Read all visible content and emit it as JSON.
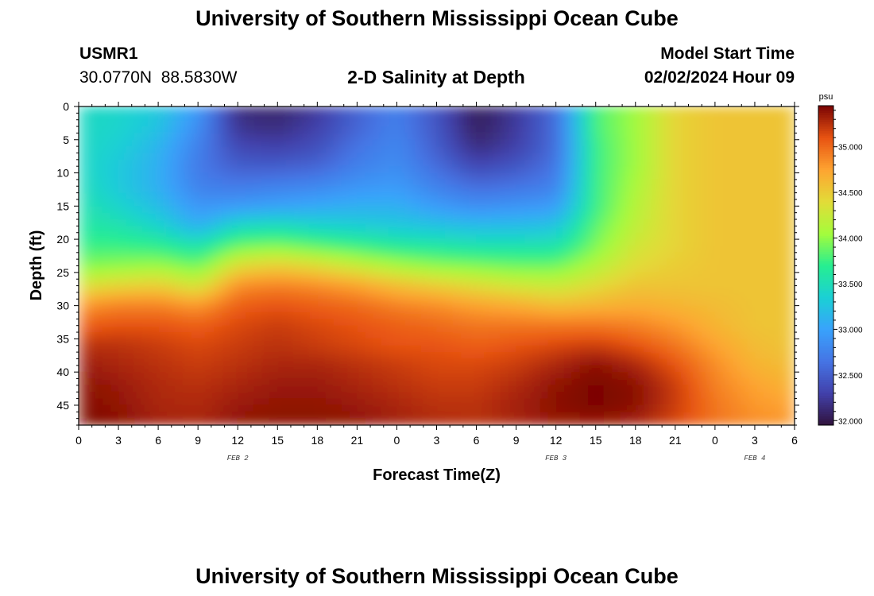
{
  "header": {
    "title": "University of Southern Mississippi Ocean Cube",
    "station_id": "USMR1",
    "coordinates": "30.0770N  88.5830W",
    "plot_title": "2-D Salinity at Depth",
    "model_label": "Model Start Time",
    "model_time": "02/02/2024 Hour 09"
  },
  "footer": {
    "title": "University of Southern Mississippi Ocean Cube"
  },
  "chart_data": {
    "type": "heatmap",
    "title": "2-D Salinity at Depth",
    "xlabel": "Forecast Time(Z)",
    "ylabel": "Depth (ft)",
    "x_tick_labels": [
      "0",
      "3",
      "6",
      "9",
      "12",
      "15",
      "18",
      "21",
      "0",
      "3",
      "6",
      "9",
      "12",
      "15",
      "18",
      "21",
      "0",
      "3",
      "6"
    ],
    "x_hours": [
      0,
      3,
      6,
      9,
      12,
      15,
      18,
      21,
      24,
      27,
      30,
      33,
      36,
      39,
      42,
      45,
      48,
      51,
      54
    ],
    "date_labels": [
      {
        "text": "FEB 2",
        "hour": 12
      },
      {
        "text": "FEB 3",
        "hour": 36
      },
      {
        "text": "FEB 4",
        "hour": 51
      }
    ],
    "xlim_hours": [
      0,
      54
    ],
    "y_ticks": [
      0,
      5,
      10,
      15,
      20,
      25,
      30,
      35,
      40,
      45
    ],
    "ylim": [
      0,
      48
    ],
    "y_reversed": true,
    "colorbar": {
      "unit": "psu",
      "ticks": [
        "35.000",
        "34.500",
        "34.000",
        "33.500",
        "33.000",
        "32.500",
        "32.000"
      ],
      "range": [
        31.95,
        35.45
      ],
      "colormap": "turbo"
    },
    "time_hours": [
      0,
      3,
      6,
      9,
      12,
      15,
      18,
      21,
      24,
      27,
      30,
      33,
      36,
      39,
      42,
      45,
      48,
      51,
      54
    ],
    "depths_ft": [
      0,
      3,
      6,
      9,
      12,
      15,
      18,
      21,
      24,
      27,
      30,
      33,
      36,
      39,
      42,
      45,
      48
    ],
    "values": [
      [
        33.45,
        33.45,
        33.45,
        33.46,
        33.5,
        33.55,
        33.62,
        33.75,
        33.95,
        34.35,
        34.8,
        35.05,
        35.25,
        35.35,
        35.4,
        35.42,
        35.45
      ],
      [
        33.4,
        33.4,
        33.35,
        33.3,
        33.3,
        33.4,
        33.55,
        33.75,
        34.0,
        34.45,
        34.9,
        35.1,
        35.25,
        35.3,
        35.35,
        35.38,
        35.4
      ],
      [
        33.3,
        33.25,
        33.15,
        33.1,
        33.1,
        33.2,
        33.4,
        33.7,
        34.05,
        34.5,
        34.9,
        35.1,
        35.2,
        35.25,
        35.28,
        35.3,
        35.32
      ],
      [
        32.95,
        32.85,
        32.75,
        32.7,
        32.75,
        32.9,
        33.1,
        33.55,
        33.9,
        34.3,
        34.8,
        35.05,
        35.15,
        35.2,
        35.25,
        35.28,
        35.3
      ],
      [
        32.15,
        32.2,
        32.35,
        32.5,
        32.7,
        32.95,
        33.45,
        33.9,
        34.4,
        34.85,
        35.05,
        35.15,
        35.2,
        35.25,
        35.3,
        35.35,
        35.38
      ],
      [
        32.1,
        32.15,
        32.3,
        32.5,
        32.75,
        33.0,
        33.5,
        33.95,
        34.5,
        34.9,
        35.1,
        35.2,
        35.25,
        35.3,
        35.35,
        35.38,
        35.4
      ],
      [
        32.25,
        32.3,
        32.4,
        32.55,
        32.8,
        33.05,
        33.4,
        33.85,
        34.4,
        34.85,
        35.05,
        35.15,
        35.2,
        35.3,
        35.35,
        35.38,
        35.4
      ],
      [
        32.55,
        32.55,
        32.65,
        32.75,
        32.9,
        33.1,
        33.35,
        33.75,
        34.25,
        34.75,
        35.0,
        35.1,
        35.15,
        35.25,
        35.3,
        35.35,
        35.38
      ],
      [
        32.75,
        32.75,
        32.8,
        32.85,
        32.95,
        33.1,
        33.3,
        33.65,
        34.1,
        34.6,
        34.9,
        35.05,
        35.1,
        35.2,
        35.25,
        35.3,
        35.32
      ],
      [
        32.45,
        32.45,
        32.5,
        32.6,
        32.75,
        32.95,
        33.25,
        33.6,
        34.0,
        34.5,
        34.85,
        35.0,
        35.1,
        35.15,
        35.2,
        35.25,
        35.28
      ],
      [
        32.05,
        32.05,
        32.15,
        32.35,
        32.6,
        32.85,
        33.2,
        33.55,
        33.95,
        34.4,
        34.75,
        34.95,
        35.05,
        35.15,
        35.2,
        35.25,
        35.25
      ],
      [
        32.25,
        32.25,
        32.3,
        32.45,
        32.65,
        32.9,
        33.2,
        33.55,
        33.9,
        34.3,
        34.7,
        34.95,
        35.1,
        35.2,
        35.28,
        35.32,
        35.3
      ],
      [
        32.6,
        32.6,
        32.6,
        32.65,
        32.75,
        32.95,
        33.25,
        33.55,
        33.9,
        34.25,
        34.6,
        34.95,
        35.15,
        35.3,
        35.38,
        35.4,
        35.35
      ],
      [
        33.8,
        33.8,
        33.75,
        33.75,
        33.75,
        33.75,
        33.85,
        33.95,
        34.15,
        34.4,
        34.65,
        34.95,
        35.2,
        35.4,
        35.45,
        35.45,
        35.35
      ],
      [
        34.05,
        34.05,
        34.05,
        34.05,
        34.1,
        34.15,
        34.2,
        34.3,
        34.4,
        34.55,
        34.7,
        34.9,
        35.1,
        35.3,
        35.4,
        35.4,
        35.3
      ],
      [
        34.45,
        34.45,
        34.45,
        34.45,
        34.45,
        34.45,
        34.45,
        34.45,
        34.5,
        34.55,
        34.65,
        34.8,
        34.95,
        35.1,
        35.2,
        35.2,
        35.15
      ],
      [
        34.55,
        34.55,
        34.55,
        34.55,
        34.55,
        34.55,
        34.55,
        34.55,
        34.55,
        34.55,
        34.6,
        34.65,
        34.75,
        34.85,
        34.9,
        34.95,
        34.95
      ],
      [
        34.55,
        34.55,
        34.55,
        34.55,
        34.55,
        34.55,
        34.55,
        34.55,
        34.55,
        34.55,
        34.55,
        34.55,
        34.6,
        34.65,
        34.75,
        34.8,
        34.85
      ],
      [
        34.55,
        34.55,
        34.55,
        34.55,
        34.55,
        34.55,
        34.55,
        34.55,
        34.55,
        34.55,
        34.55,
        34.55,
        34.55,
        34.6,
        34.65,
        34.75,
        34.8
      ]
    ]
  }
}
